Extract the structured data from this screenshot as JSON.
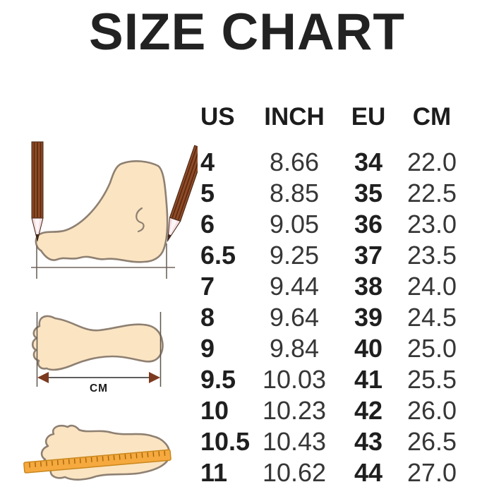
{
  "title": "SIZE CHART",
  "chart_data": {
    "type": "table",
    "title": "SIZE CHART",
    "columns": [
      "US",
      "INCH",
      "EU",
      "CM"
    ],
    "rows": [
      [
        "4",
        "8.66",
        "34",
        "22.0"
      ],
      [
        "5",
        "8.85",
        "35",
        "22.5"
      ],
      [
        "6",
        "9.05",
        "36",
        "23.0"
      ],
      [
        "6.5",
        "9.25",
        "37",
        "23.5"
      ],
      [
        "7",
        "9.44",
        "38",
        "24.0"
      ],
      [
        "8",
        "9.64",
        "39",
        "24.5"
      ],
      [
        "9",
        "9.84",
        "40",
        "25.0"
      ],
      [
        "9.5",
        "10.03",
        "41",
        "25.5"
      ],
      [
        "10",
        "10.23",
        "42",
        "26.0"
      ],
      [
        "10.5",
        "10.43",
        "43",
        "26.5"
      ],
      [
        "11",
        "10.62",
        "44",
        "27.0"
      ]
    ],
    "layout_hints": {
      "bold_columns": [
        "US",
        "EU"
      ],
      "header_row_bold": true,
      "grid": false
    }
  },
  "illustrations": {
    "side_view": {
      "name": "foot-side-measure-illustration",
      "icons": [
        "pencil-icon",
        "foot-side-icon",
        "baseline-icon"
      ]
    },
    "length_measure": {
      "name": "foot-length-illustration",
      "unit_label": "CM",
      "icons": [
        "footprint-icon",
        "measure-arrow-icon"
      ]
    },
    "ruler_measure": {
      "name": "foot-ruler-illustration",
      "icons": [
        "footprint-icon",
        "ruler-icon"
      ]
    }
  },
  "colors": {
    "background": "#ffffff",
    "text_primary": "#1f1f1f",
    "text_secondary": "#363636",
    "foot_fill": "#FBE4C2",
    "foot_outline": "#8E8072",
    "pencil_body": "#8F4B28",
    "pencil_stripe": "#5A2910",
    "pencil_wood": "#F6DEE4",
    "pencil_tip": "#40281A",
    "ruler_fill": "#F5A93E",
    "ruler_border": "#C9871D",
    "ruler_tick": "#A3650D",
    "arrowhead": "#7B3A1F",
    "guide_line": "#6E655C"
  }
}
